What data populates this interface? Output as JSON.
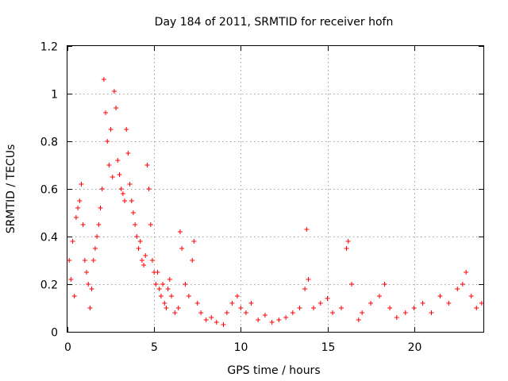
{
  "chart_data": {
    "type": "scatter",
    "title": "Day 184 of 2011, SRMTID for receiver hofn",
    "xlabel": "GPS time / hours",
    "ylabel": "SRMTID / TECUs",
    "xlim": [
      0,
      24
    ],
    "ylim": [
      0,
      1.2
    ],
    "x_ticks": [
      0,
      5,
      10,
      15,
      20
    ],
    "x_tick_labels": [
      "0",
      "5",
      "10",
      "15",
      "20"
    ],
    "y_ticks": [
      0,
      0.2,
      0.4,
      0.6,
      0.8,
      1.0,
      1.2
    ],
    "y_tick_labels": [
      "0",
      "0.2",
      "0.4",
      "0.6",
      "0.8",
      "1",
      "1.2"
    ],
    "grid": true,
    "marker": "+",
    "color": "#ff0000",
    "series": [
      {
        "name": "SRMTID",
        "points": [
          [
            0.1,
            0.3
          ],
          [
            0.2,
            0.22
          ],
          [
            0.3,
            0.38
          ],
          [
            0.4,
            0.15
          ],
          [
            0.5,
            0.48
          ],
          [
            0.6,
            0.52
          ],
          [
            0.7,
            0.55
          ],
          [
            0.8,
            0.62
          ],
          [
            0.9,
            0.45
          ],
          [
            1.0,
            0.3
          ],
          [
            1.1,
            0.25
          ],
          [
            1.2,
            0.2
          ],
          [
            1.3,
            0.1
          ],
          [
            1.4,
            0.18
          ],
          [
            1.5,
            0.3
          ],
          [
            1.6,
            0.35
          ],
          [
            1.7,
            0.4
          ],
          [
            1.8,
            0.45
          ],
          [
            1.9,
            0.52
          ],
          [
            2.0,
            0.6
          ],
          [
            2.1,
            1.06
          ],
          [
            2.2,
            0.92
          ],
          [
            2.3,
            0.8
          ],
          [
            2.4,
            0.7
          ],
          [
            2.5,
            0.85
          ],
          [
            2.6,
            0.65
          ],
          [
            2.7,
            1.01
          ],
          [
            2.8,
            0.94
          ],
          [
            2.9,
            0.72
          ],
          [
            3.0,
            0.66
          ],
          [
            3.1,
            0.6
          ],
          [
            3.2,
            0.58
          ],
          [
            3.3,
            0.55
          ],
          [
            3.4,
            0.85
          ],
          [
            3.5,
            0.75
          ],
          [
            3.6,
            0.62
          ],
          [
            3.7,
            0.55
          ],
          [
            3.8,
            0.5
          ],
          [
            3.9,
            0.45
          ],
          [
            4.0,
            0.4
          ],
          [
            4.1,
            0.35
          ],
          [
            4.2,
            0.38
          ],
          [
            4.3,
            0.3
          ],
          [
            4.4,
            0.28
          ],
          [
            4.5,
            0.32
          ],
          [
            4.6,
            0.7
          ],
          [
            4.7,
            0.6
          ],
          [
            4.8,
            0.45
          ],
          [
            4.9,
            0.3
          ],
          [
            5.0,
            0.25
          ],
          [
            5.1,
            0.2
          ],
          [
            5.2,
            0.25
          ],
          [
            5.3,
            0.18
          ],
          [
            5.4,
            0.15
          ],
          [
            5.5,
            0.2
          ],
          [
            5.6,
            0.12
          ],
          [
            5.7,
            0.1
          ],
          [
            5.8,
            0.18
          ],
          [
            5.9,
            0.22
          ],
          [
            6.0,
            0.15
          ],
          [
            6.2,
            0.08
          ],
          [
            6.4,
            0.1
          ],
          [
            6.5,
            0.42
          ],
          [
            6.6,
            0.35
          ],
          [
            6.8,
            0.2
          ],
          [
            7.0,
            0.15
          ],
          [
            7.2,
            0.3
          ],
          [
            7.3,
            0.38
          ],
          [
            7.5,
            0.12
          ],
          [
            7.7,
            0.08
          ],
          [
            8.0,
            0.05
          ],
          [
            8.3,
            0.06
          ],
          [
            8.6,
            0.04
          ],
          [
            9.0,
            0.03
          ],
          [
            9.2,
            0.08
          ],
          [
            9.5,
            0.12
          ],
          [
            9.8,
            0.15
          ],
          [
            10.0,
            0.1
          ],
          [
            10.3,
            0.08
          ],
          [
            10.6,
            0.12
          ],
          [
            11.0,
            0.05
          ],
          [
            11.4,
            0.07
          ],
          [
            11.8,
            0.04
          ],
          [
            12.2,
            0.05
          ],
          [
            12.6,
            0.06
          ],
          [
            13.0,
            0.08
          ],
          [
            13.4,
            0.1
          ],
          [
            13.7,
            0.18
          ],
          [
            13.8,
            0.43
          ],
          [
            13.9,
            0.22
          ],
          [
            14.2,
            0.1
          ],
          [
            14.6,
            0.12
          ],
          [
            15.0,
            0.14
          ],
          [
            15.3,
            0.08
          ],
          [
            15.8,
            0.1
          ],
          [
            16.1,
            0.35
          ],
          [
            16.2,
            0.38
          ],
          [
            16.4,
            0.2
          ],
          [
            16.8,
            0.05
          ],
          [
            17.0,
            0.08
          ],
          [
            17.5,
            0.12
          ],
          [
            18.0,
            0.15
          ],
          [
            18.3,
            0.2
          ],
          [
            18.6,
            0.1
          ],
          [
            19.0,
            0.06
          ],
          [
            19.5,
            0.08
          ],
          [
            20.0,
            0.1
          ],
          [
            20.5,
            0.12
          ],
          [
            21.0,
            0.08
          ],
          [
            21.5,
            0.15
          ],
          [
            22.0,
            0.12
          ],
          [
            22.5,
            0.18
          ],
          [
            22.8,
            0.2
          ],
          [
            23.0,
            0.25
          ],
          [
            23.3,
            0.15
          ],
          [
            23.6,
            0.1
          ],
          [
            23.9,
            0.12
          ]
        ]
      }
    ]
  }
}
